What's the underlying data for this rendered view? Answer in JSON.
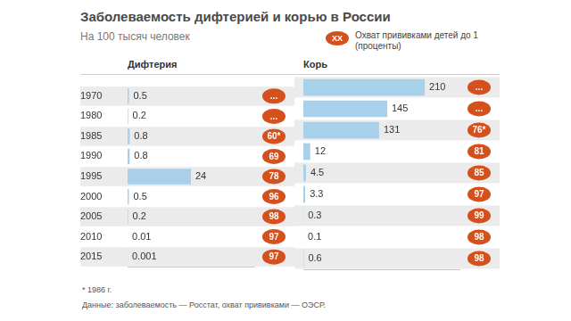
{
  "header": {
    "title": "Заболеваемость дифтерией и корью в России",
    "subtitle": "На 100 тысяч человек"
  },
  "coverage_legend": {
    "symbol": "XX",
    "text": [
      "Охват прививками детей до 1",
      "(проценты)"
    ]
  },
  "chart_data": [
    {
      "type": "bar",
      "orientation": "horizontal",
      "title": "Дифтерия",
      "categories": [
        "1970",
        "1980",
        "1985",
        "1990",
        "1995",
        "2000",
        "2005",
        "2010",
        "2015"
      ],
      "values": [
        0.5,
        0.2,
        0.8,
        0.8,
        24,
        0.5,
        0.2,
        0.01,
        0.001
      ],
      "color": "#a9d0ea",
      "xlim": [
        0,
        48
      ],
      "grid": false,
      "data_labels": true,
      "tick_labels": "y",
      "coverage": [
        null,
        null,
        60,
        69,
        78,
        96,
        98,
        97,
        97
      ],
      "coverage_labels": [
        "...",
        "...",
        "60*",
        "69",
        "78",
        "96",
        "98",
        "97",
        "97"
      ]
    },
    {
      "type": "bar",
      "orientation": "horizontal",
      "title": "Корь",
      "categories": [
        "1970",
        "1980",
        "1985",
        "1990",
        "1995",
        "2000",
        "2005",
        "2010",
        "2015"
      ],
      "values": [
        210,
        145,
        131,
        12,
        4.5,
        3.3,
        0.3,
        0.1,
        0.6
      ],
      "color": "#a9d0ea",
      "xlim": [
        0,
        270
      ],
      "grid": false,
      "data_labels": true,
      "tick_labels": false,
      "coverage": [
        null,
        null,
        76,
        81,
        85,
        97,
        99,
        98,
        98
      ],
      "coverage_labels": [
        "...",
        "...",
        "76*",
        "81",
        "85",
        "97",
        "99",
        "98",
        "98"
      ]
    }
  ],
  "footnotes": [
    "* 1986 г.",
    "Данные: заболеваемость — Росстат, охват прививками — ОЭСР."
  ]
}
